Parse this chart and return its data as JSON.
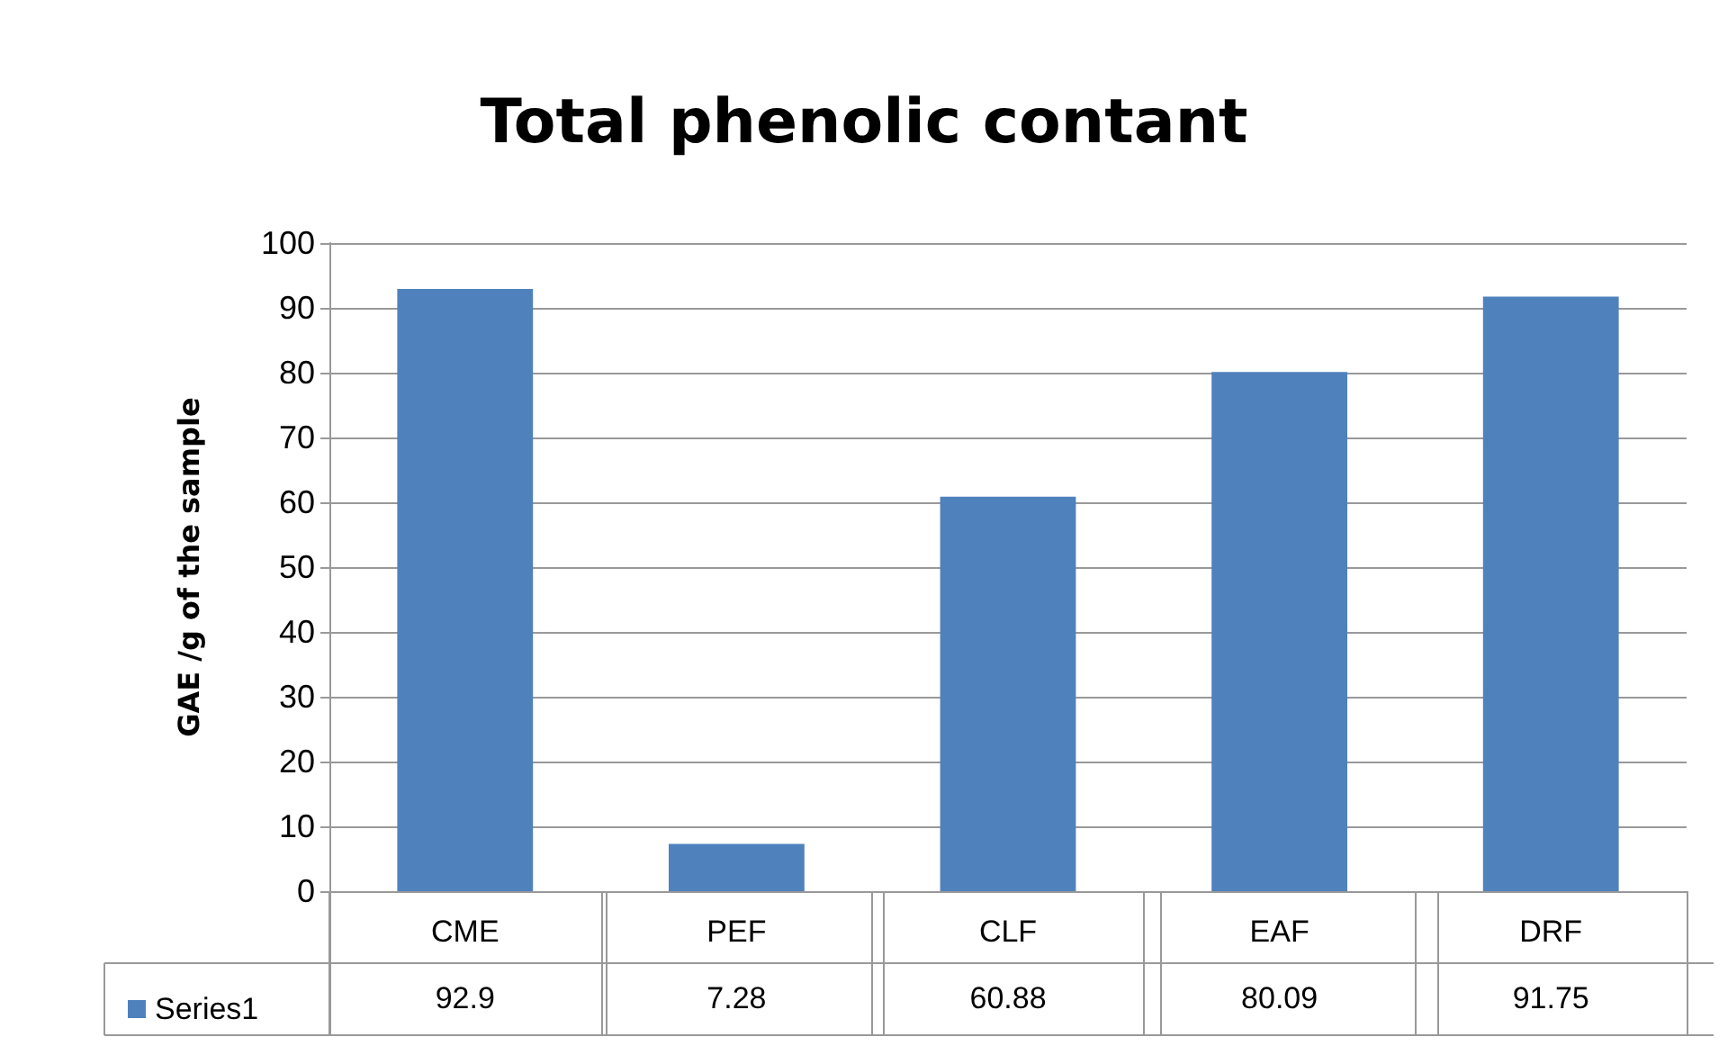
{
  "chart_data": {
    "type": "bar",
    "title": "Total phenolic contant",
    "ylabel": "GAE /g of the sample",
    "categories": [
      "CME",
      "PEF",
      "CLF",
      "EAF",
      "DRF"
    ],
    "series": [
      {
        "name": "Series1",
        "color": "#4f81bd",
        "values": [
          92.9,
          7.28,
          60.88,
          80.09,
          91.75
        ]
      }
    ],
    "ylim": [
      0,
      100
    ],
    "yticks": [
      0,
      10,
      20,
      30,
      40,
      50,
      60,
      70,
      80,
      90,
      100
    ],
    "grid": "y",
    "legend": "bottom left",
    "data_labels": true
  }
}
